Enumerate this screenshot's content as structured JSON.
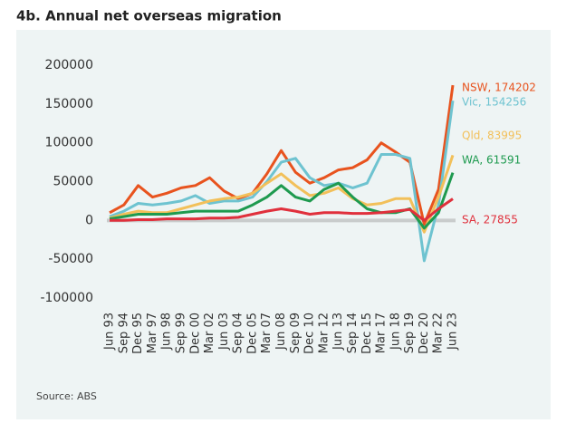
{
  "chart_data": {
    "type": "line",
    "title": "4b. Annual net overseas migration",
    "source": "Source: ABS",
    "categories": [
      "Jun 93",
      "Sep 94",
      "Dec 95",
      "Mar 97",
      "Jun 98",
      "Sep 99",
      "Dec 00",
      "Mar 02",
      "Jun 03",
      "Sep 04",
      "Dec 05",
      "Mar 07",
      "Jun 08",
      "Sep 09",
      "Dec 10",
      "Mar 12",
      "Jun 13",
      "Sep 14",
      "Dec 15",
      "Mar 17",
      "Jun 18",
      "Sep 19",
      "Dec 20",
      "Mar 22",
      "Jun 23"
    ],
    "ylim": [
      -100000,
      200000
    ],
    "yticks": [
      -100000,
      -50000,
      0,
      50000,
      100000,
      150000,
      200000
    ],
    "series": [
      {
        "name": "NSW",
        "label": "NSW, 174202",
        "color": "#e8531e",
        "values": [
          10000,
          20000,
          45000,
          30000,
          35000,
          42000,
          45000,
          55000,
          38000,
          28000,
          35000,
          60000,
          90000,
          62000,
          48000,
          55000,
          65000,
          68000,
          78000,
          100000,
          88000,
          75000,
          -5000,
          40000,
          174202
        ]
      },
      {
        "name": "Vic",
        "label": "Vic, 154256",
        "color": "#6ec3d0",
        "values": [
          5000,
          12000,
          22000,
          20000,
          22000,
          25000,
          32000,
          22000,
          25000,
          25000,
          30000,
          50000,
          75000,
          80000,
          55000,
          45000,
          48000,
          42000,
          48000,
          85000,
          85000,
          80000,
          -52000,
          20000,
          154256
        ]
      },
      {
        "name": "Qld",
        "label": "Qld, 83995",
        "color": "#f2c05a",
        "values": [
          3000,
          8000,
          12000,
          10000,
          10000,
          15000,
          20000,
          25000,
          28000,
          30000,
          35000,
          48000,
          60000,
          45000,
          32000,
          35000,
          42000,
          28000,
          20000,
          22000,
          28000,
          28000,
          -15000,
          30000,
          83995
        ]
      },
      {
        "name": "WA",
        "label": "WA, 61591",
        "color": "#1e9a4f",
        "values": [
          2000,
          5000,
          8000,
          8000,
          8000,
          10000,
          12000,
          12000,
          12000,
          12000,
          20000,
          30000,
          45000,
          30000,
          25000,
          40000,
          48000,
          30000,
          15000,
          10000,
          10000,
          15000,
          -10000,
          10000,
          61591
        ]
      },
      {
        "name": "SA",
        "label": "SA, 27855",
        "color": "#e0303c",
        "values": [
          0,
          0,
          1000,
          1000,
          2000,
          2000,
          2000,
          3000,
          3000,
          4000,
          8000,
          12000,
          15000,
          12000,
          8000,
          10000,
          10000,
          9000,
          9000,
          10000,
          12000,
          14000,
          0,
          15000,
          27855
        ]
      }
    ]
  }
}
